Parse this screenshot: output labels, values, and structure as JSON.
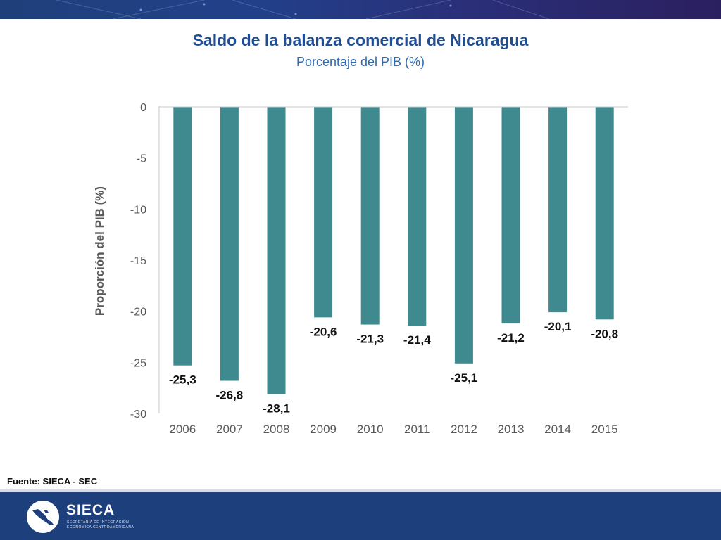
{
  "header": {
    "title": "Saldo de la balanza comercial de Nicaragua",
    "subtitle": "Porcentaje del PIB (%)"
  },
  "source": "Fuente: SIECA - SEC",
  "logo": {
    "name": "SIECA",
    "tagline_line1": "SECRETARÍA DE INTEGRACIÓN",
    "tagline_line2": "ECONÓMICA CENTROAMERICANA"
  },
  "colors": {
    "bar": "#3e8a8f",
    "title": "#1f4e96",
    "footer": "#1d3f7c"
  },
  "chart_data": {
    "type": "bar",
    "title": "Saldo de la balanza comercial de Nicaragua",
    "subtitle": "Porcentaje del PIB (%)",
    "xlabel": "",
    "ylabel": "Proporción del PIB (%)",
    "ylim": [
      -30,
      0
    ],
    "yticks": [
      0,
      -5,
      -10,
      -15,
      -20,
      -25,
      -30
    ],
    "grid": false,
    "legend": "none",
    "categories": [
      "2006",
      "2007",
      "2008",
      "2009",
      "2010",
      "2011",
      "2012",
      "2013",
      "2014",
      "2015"
    ],
    "values": [
      -25.3,
      -26.8,
      -28.1,
      -20.6,
      -21.3,
      -21.4,
      -25.1,
      -21.2,
      -20.1,
      -20.8
    ],
    "data_labels": [
      "-25,3",
      "-26,8",
      "-28,1",
      "-20,6",
      "-21,3",
      "-21,4",
      "-25,1",
      "-21,2",
      "-20,1",
      "-20,8"
    ]
  }
}
